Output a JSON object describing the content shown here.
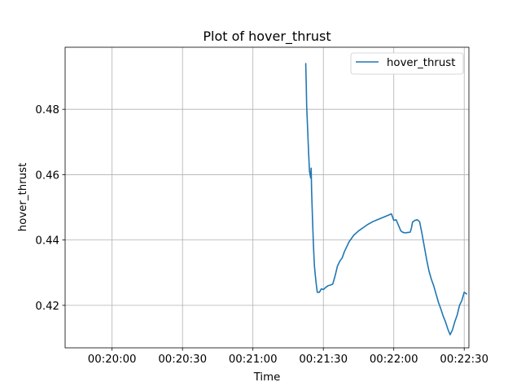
{
  "chart_data": {
    "type": "line",
    "title": "Plot of hover_thrust",
    "xlabel": "Time",
    "ylabel": "hover_thrust",
    "x_unit": "time_of_day",
    "xlim": [
      "00:19:40",
      "00:22:32"
    ],
    "ylim": [
      0.407,
      0.499
    ],
    "xticks": [
      "00:20:00",
      "00:20:30",
      "00:21:00",
      "00:21:30",
      "00:22:00",
      "00:22:30"
    ],
    "yticks": [
      0.42,
      0.44,
      0.46,
      0.48
    ],
    "grid": true,
    "legend": {
      "placement": "top-right"
    },
    "colors": {
      "series": "#1f77b4"
    },
    "series": [
      {
        "name": "hover_thrust",
        "x": [
          "00:21:22.5",
          "00:21:22.7",
          "00:21:22.9",
          "00:21:23.3",
          "00:21:23.7",
          "00:21:24.1",
          "00:21:24.6",
          "00:21:24.8",
          "00:21:25.0",
          "00:21:25.4",
          "00:21:25.8",
          "00:21:26.2",
          "00:21:26.6",
          "00:21:26.9",
          "00:21:27.4",
          "00:21:27.8",
          "00:21:28.3",
          "00:21:28.7",
          "00:21:29.1",
          "00:21:29.5",
          "00:21:30.0",
          "00:21:31.0",
          "00:21:32.0",
          "00:21:33.0",
          "00:21:34.0",
          "00:21:35.0",
          "00:21:36.0",
          "00:21:37.0",
          "00:21:38.0",
          "00:21:39.0",
          "00:21:40.0",
          "00:21:41.0",
          "00:21:42.0",
          "00:21:43.0",
          "00:21:45.0",
          "00:21:47.0",
          "00:21:49.0",
          "00:21:51.0",
          "00:21:53.0",
          "00:21:55.0",
          "00:21:57.0",
          "00:21:59.0",
          "00:22:00.0",
          "00:22:01.0",
          "00:22:02.0",
          "00:22:03.0",
          "00:22:04.0",
          "00:22:05.0",
          "00:22:06.0",
          "00:22:07.0",
          "00:22:07.5",
          "00:22:08.0",
          "00:22:09.0",
          "00:22:10.0",
          "00:22:11.0",
          "00:22:12.0",
          "00:22:13.0",
          "00:22:14.0",
          "00:22:15.0",
          "00:22:16.0",
          "00:22:17.0",
          "00:22:18.0",
          "00:22:19.0",
          "00:22:20.0",
          "00:22:21.0",
          "00:22:22.0",
          "00:22:23.0",
          "00:22:24.0",
          "00:22:25.0",
          "00:22:26.0",
          "00:22:27.0",
          "00:22:28.0",
          "00:22:29.0",
          "00:22:30.0",
          "00:22:31.0"
        ],
        "y": [
          0.494,
          0.488,
          0.481,
          0.474,
          0.467,
          0.461,
          0.459,
          0.462,
          0.455,
          0.446,
          0.438,
          0.432,
          0.429,
          0.427,
          0.424,
          0.424,
          0.424,
          0.4245,
          0.425,
          0.425,
          0.4248,
          0.4255,
          0.426,
          0.4262,
          0.4265,
          0.429,
          0.432,
          0.4335,
          0.4345,
          0.4365,
          0.438,
          0.4395,
          0.4405,
          0.4415,
          0.4428,
          0.4438,
          0.4448,
          0.4456,
          0.4462,
          0.4468,
          0.4474,
          0.448,
          0.446,
          0.4462,
          0.4445,
          0.4428,
          0.4423,
          0.4422,
          0.4423,
          0.4424,
          0.4436,
          0.4455,
          0.446,
          0.4462,
          0.4456,
          0.442,
          0.438,
          0.434,
          0.4305,
          0.428,
          0.426,
          0.4235,
          0.421,
          0.419,
          0.4168,
          0.415,
          0.4128,
          0.411,
          0.4125,
          0.415,
          0.417,
          0.42,
          0.4215,
          0.424,
          0.4235
        ]
      }
    ]
  }
}
